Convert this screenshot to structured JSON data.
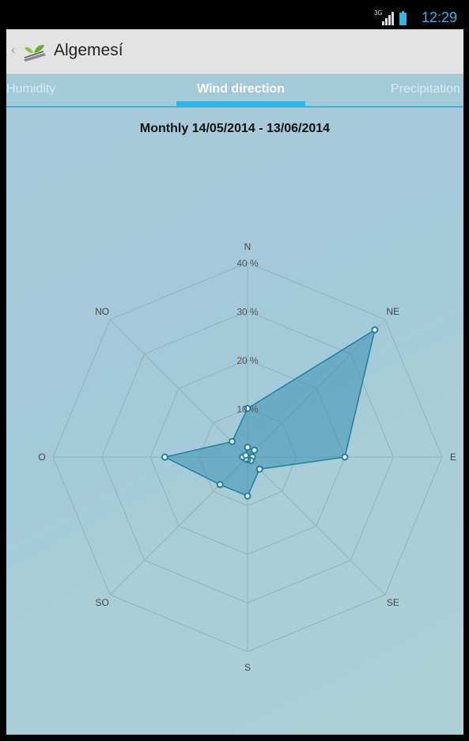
{
  "status_bar": {
    "time": "12:29",
    "network": "3G"
  },
  "action_bar": {
    "title": "Algemesí"
  },
  "tabs": [
    {
      "label": "Humidity",
      "active": false
    },
    {
      "label": "Wind direction",
      "active": true
    },
    {
      "label": "Precipitation",
      "active": false
    }
  ],
  "accent_color": "#33b5e5",
  "chart_data": {
    "type": "radar",
    "title": "Monthly 14/05/2014 - 13/06/2014",
    "directions": [
      "N",
      "NE",
      "E",
      "SE",
      "S",
      "SO",
      "O",
      "NO"
    ],
    "tick_labels": [
      "10 %",
      "20 %",
      "30 %",
      "40 %"
    ],
    "rlim": [
      0,
      40
    ],
    "grid": true,
    "series": [
      {
        "values": [
          10,
          37,
          20,
          3.5,
          8,
          8,
          17,
          4.5
        ],
        "color": "#3d92b3"
      },
      {
        "values": [
          2,
          2,
          1,
          1,
          0.5,
          0.5,
          1,
          0.5
        ],
        "color": "#3d92b3"
      }
    ]
  }
}
